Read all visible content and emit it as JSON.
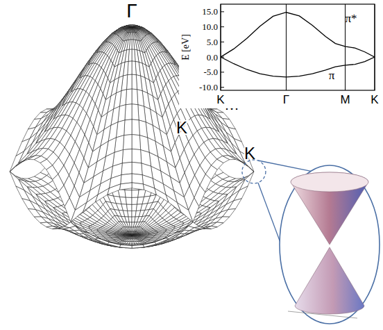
{
  "diagram": {
    "labels": [
      "Γ",
      "M",
      "K",
      "K"
    ]
  },
  "chart_data": {
    "type": "line",
    "y_label": "E [eV]",
    "x": [
      0,
      0.2,
      0.4,
      0.6,
      0.8,
      1,
      1.2,
      1.4,
      1.6,
      1.75,
      1.9,
      2.05,
      2.2,
      2.35
    ],
    "series": [
      {
        "name": "π*",
        "color": "#000000",
        "values": [
          0,
          2.7,
          6.2,
          10.2,
          13.5,
          14.8,
          13.6,
          10.5,
          6.8,
          4.5,
          3.5,
          3.0,
          1.7,
          0
        ]
      },
      {
        "name": "π",
        "color": "#000000",
        "values": [
          0,
          -2.2,
          -4.1,
          -5.5,
          -6.3,
          -6.6,
          -6.3,
          -5.5,
          -4.3,
          -3.2,
          -2.7,
          -2.4,
          -1.5,
          0
        ]
      }
    ],
    "xlim": [
      0,
      2.35
    ],
    "xticks": [
      {
        "value": 0,
        "label": "K"
      },
      {
        "value": 1,
        "label": "Γ"
      },
      {
        "value": 1.9,
        "label": "M"
      },
      {
        "value": 2.35,
        "label": "K"
      }
    ],
    "ylim": [
      -11,
      17.5
    ],
    "yticks": [
      {
        "value": 15,
        "label": "15.0"
      },
      {
        "value": 10,
        "label": "10.0"
      },
      {
        "value": 5,
        "label": "5.0"
      },
      {
        "value": 0,
        "label": "0.0"
      },
      {
        "value": -5,
        "label": "-5.0"
      },
      {
        "value": -10,
        "label": "-10.0"
      }
    ],
    "grid": true
  }
}
